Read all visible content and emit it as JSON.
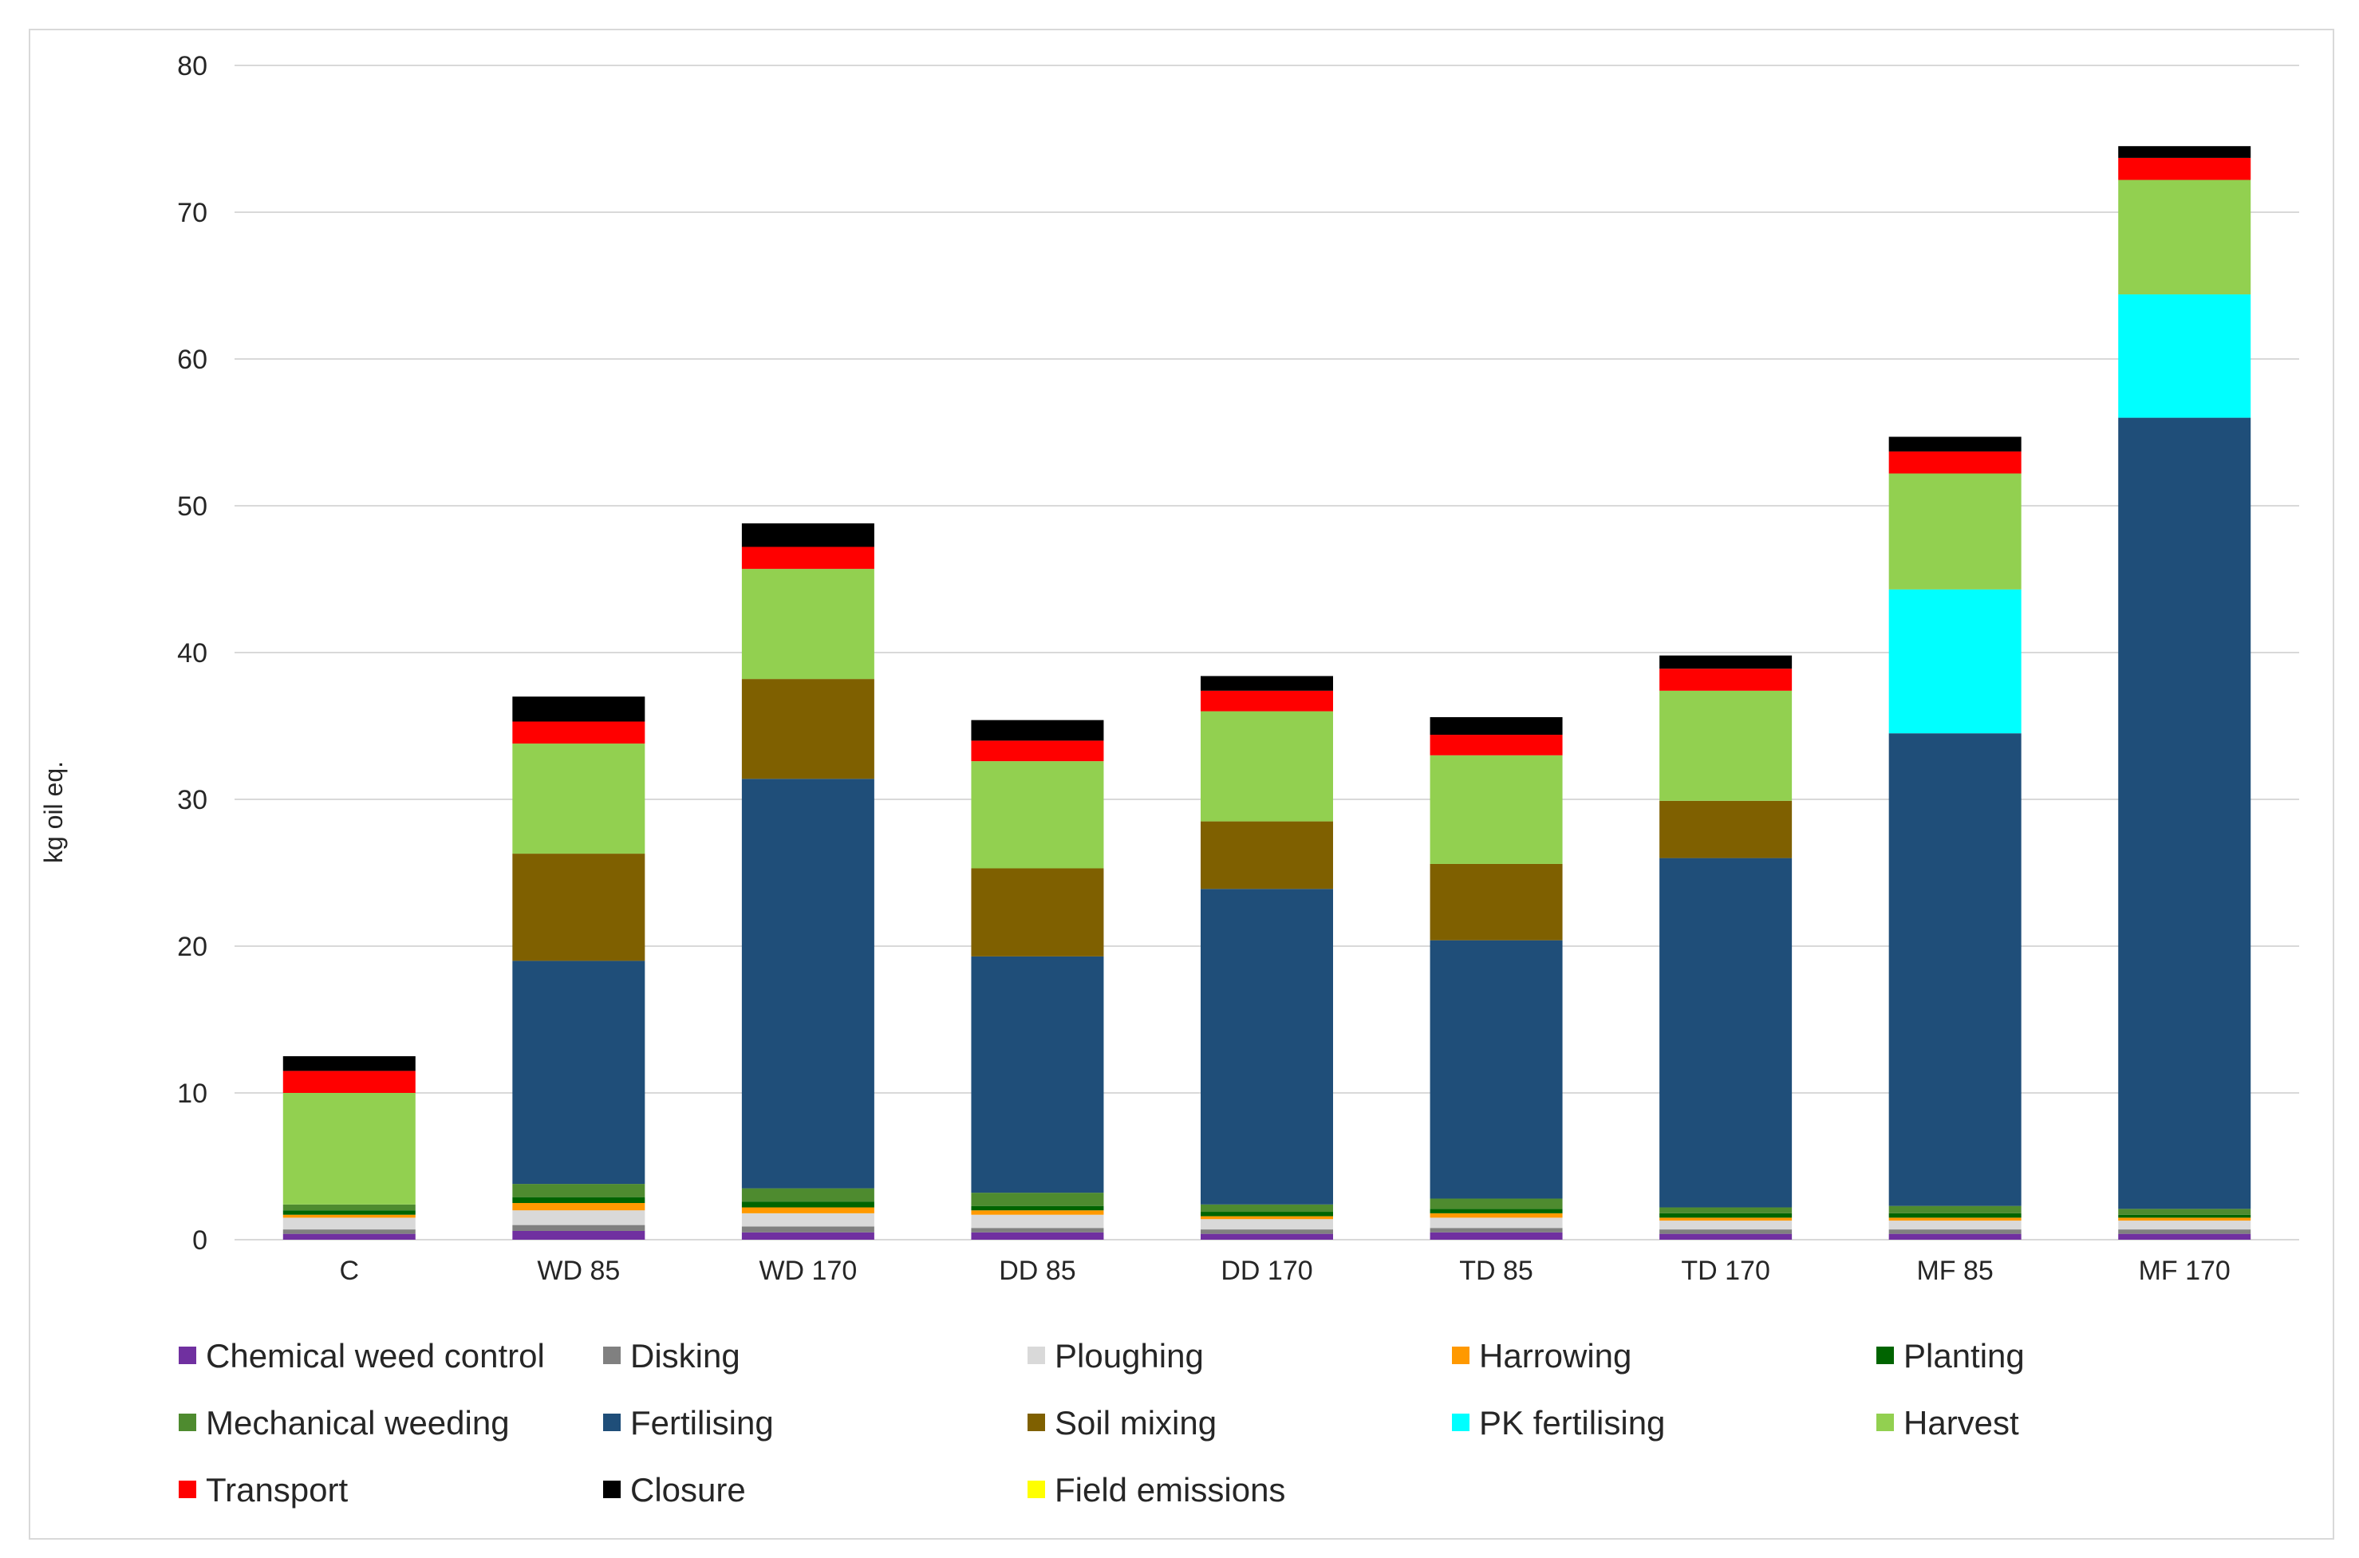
{
  "chart_data": {
    "type": "bar",
    "stacked": true,
    "title": "",
    "xlabel": "",
    "ylabel": "kg oil eq.",
    "ylim": [
      0,
      80
    ],
    "yticks": [
      0,
      10,
      20,
      30,
      40,
      50,
      60,
      70,
      80
    ],
    "grid": true,
    "legend_position": "bottom",
    "categories": [
      "C",
      "WD 85",
      "WD 170",
      "DD 85",
      "DD 170",
      "TD 85",
      "TD 170",
      "MF 85",
      "MF 170"
    ],
    "series": [
      {
        "name": "Chemical weed control",
        "color": "#7030a0",
        "values": [
          0.4,
          0.6,
          0.5,
          0.5,
          0.4,
          0.5,
          0.4,
          0.4,
          0.4
        ]
      },
      {
        "name": "Disking",
        "color": "#808080",
        "values": [
          0.3,
          0.4,
          0.4,
          0.3,
          0.3,
          0.3,
          0.3,
          0.3,
          0.3
        ]
      },
      {
        "name": "Ploughing",
        "color": "#d9d9d9",
        "values": [
          0.8,
          1.0,
          0.9,
          0.9,
          0.7,
          0.7,
          0.6,
          0.6,
          0.6
        ]
      },
      {
        "name": "Harrowing",
        "color": "#ff9900",
        "values": [
          0.2,
          0.5,
          0.4,
          0.3,
          0.2,
          0.3,
          0.2,
          0.2,
          0.2
        ]
      },
      {
        "name": "Planting",
        "color": "#006400",
        "values": [
          0.3,
          0.4,
          0.4,
          0.3,
          0.3,
          0.3,
          0.3,
          0.3,
          0.2
        ]
      },
      {
        "name": "Mechanical weeding",
        "color": "#4e8b2f",
        "values": [
          0.4,
          0.9,
          0.9,
          0.9,
          0.5,
          0.7,
          0.4,
          0.5,
          0.4
        ]
      },
      {
        "name": "Fertilising",
        "color": "#1f4e79",
        "values": [
          0.0,
          15.2,
          27.9,
          16.1,
          21.5,
          17.6,
          23.8,
          32.2,
          53.9
        ]
      },
      {
        "name": "Soil mixing",
        "color": "#7f6000",
        "values": [
          0.0,
          7.3,
          6.8,
          6.0,
          4.6,
          5.2,
          3.9,
          0.0,
          0.0
        ]
      },
      {
        "name": "PK fertilising",
        "color": "#00ffff",
        "values": [
          0.0,
          0.0,
          0.0,
          0.0,
          0.0,
          0.0,
          0.0,
          9.8,
          8.4
        ]
      },
      {
        "name": "Harvest",
        "color": "#92d050",
        "values": [
          7.6,
          7.5,
          7.5,
          7.3,
          7.5,
          7.4,
          7.5,
          7.9,
          7.8
        ]
      },
      {
        "name": "Transport",
        "color": "#ff0000",
        "values": [
          1.5,
          1.5,
          1.5,
          1.4,
          1.4,
          1.4,
          1.5,
          1.5,
          1.5
        ]
      },
      {
        "name": "Closure",
        "color": "#000000",
        "values": [
          1.0,
          1.7,
          1.6,
          1.4,
          1.0,
          1.2,
          0.9,
          1.0,
          0.8
        ]
      },
      {
        "name": "Field emissions",
        "color": "#ffff00",
        "values": [
          0,
          0,
          0,
          0,
          0,
          0,
          0,
          0,
          0
        ]
      }
    ]
  }
}
